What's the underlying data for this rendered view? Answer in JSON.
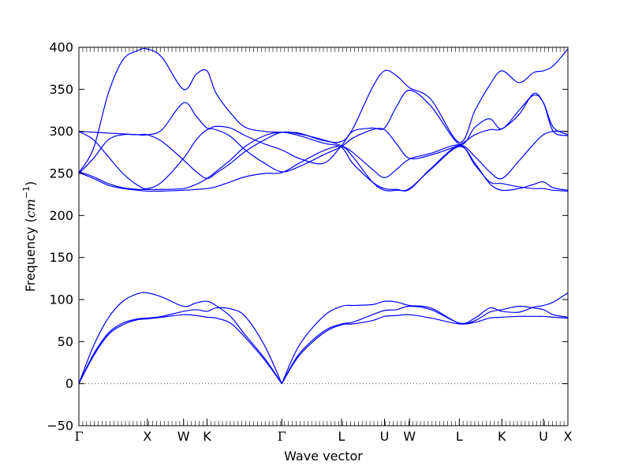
{
  "chart_data": {
    "type": "line",
    "title": "",
    "xlabel": "Wave vector",
    "ylabel_text": "Frequency (",
    "ylabel_unit": "cm",
    "ylabel_exp": "−1",
    "ylabel_close": ")",
    "ylim": [
      -50,
      400
    ],
    "yticks": [
      -50,
      0,
      50,
      100,
      150,
      200,
      250,
      300,
      350,
      400
    ],
    "ytick_labels": [
      "−50",
      "0",
      "50",
      "100",
      "150",
      "200",
      "250",
      "300",
      "350",
      "400"
    ],
    "xlim": [
      0,
      100
    ],
    "zero_line": true,
    "line_color": "#0000ff",
    "zero_line_color": "#555555",
    "kpoints": [
      {
        "label": "Γ",
        "x": 0
      },
      {
        "label": "X",
        "x": 14.0
      },
      {
        "label": "W",
        "x": 21.4
      },
      {
        "label": "K",
        "x": 26.2
      },
      {
        "label": "Γ",
        "x": 41.5
      },
      {
        "label": "L",
        "x": 53.7
      },
      {
        "label": "U",
        "x": 62.5
      },
      {
        "label": "W",
        "x": 67.6
      },
      {
        "label": "L",
        "x": 77.8
      },
      {
        "label": "K",
        "x": 86.5
      },
      {
        "label": "U",
        "x": 95.0
      },
      {
        "label": "X",
        "x": 100
      }
    ],
    "series": [
      {
        "x": [
          0,
          3,
          6,
          9,
          12,
          14,
          17,
          21.4,
          24,
          26.2,
          28,
          31,
          34,
          38,
          41.5,
          45,
          50,
          53.7,
          56,
          60,
          62.5,
          65,
          67.6,
          72,
          77.8,
          81,
          84,
          86.5,
          90,
          93,
          95,
          97,
          100
        ],
        "values": [
          0,
          45,
          78,
          98,
          107,
          108,
          103,
          92,
          96,
          98,
          93,
          80,
          58,
          30,
          0,
          45,
          80,
          92,
          93,
          94,
          98,
          97,
          93,
          90,
          72,
          78,
          90,
          86,
          85,
          91,
          93,
          97,
          108
        ]
      },
      {
        "x": [
          0,
          3,
          6,
          9,
          12,
          14,
          17,
          21.4,
          24,
          26.2,
          28,
          31,
          34,
          38,
          41.5,
          45,
          50,
          53.7,
          56,
          60,
          62.5,
          65,
          67.6,
          72,
          77.8,
          81,
          84,
          86.5,
          90,
          93,
          95,
          97,
          100
        ],
        "values": [
          0,
          35,
          60,
          72,
          77,
          78,
          80,
          86,
          88,
          86,
          90,
          89,
          80,
          45,
          0,
          35,
          62,
          71,
          73,
          82,
          87,
          88,
          92,
          88,
          72,
          75,
          85,
          88,
          92,
          90,
          88,
          82,
          79
        ]
      },
      {
        "x": [
          0,
          3,
          6,
          9,
          12,
          14,
          17,
          21.4,
          24,
          26.2,
          28,
          31,
          34,
          38,
          41.5,
          45,
          50,
          53.7,
          56,
          60,
          62.5,
          65,
          67.6,
          72,
          77.8,
          81,
          84,
          86.5,
          90,
          93,
          95,
          97,
          100
        ],
        "values": [
          0,
          33,
          58,
          70,
          76,
          77,
          79,
          82,
          81,
          79,
          78,
          72,
          55,
          28,
          0,
          33,
          60,
          70,
          71,
          75,
          80,
          81,
          82,
          78,
          71,
          73,
          78,
          79,
          80,
          80,
          80,
          79,
          78
        ]
      },
      {
        "x": [
          0,
          3,
          6,
          9,
          12,
          14,
          17,
          21.4,
          24,
          26.2,
          28,
          31,
          34,
          38,
          41.5,
          45,
          50,
          53.7,
          56,
          60,
          62.5,
          65,
          67.6,
          72,
          77.8,
          81,
          84,
          86.5,
          90,
          93,
          95,
          97,
          100
        ],
        "values": [
          251,
          244,
          236,
          232,
          230,
          229,
          229,
          230,
          231,
          232,
          234,
          240,
          246,
          250,
          251,
          262,
          277,
          282,
          270,
          240,
          230,
          230,
          232,
          255,
          282,
          262,
          238,
          230,
          232,
          237,
          240,
          233,
          230
        ]
      },
      {
        "x": [
          0,
          3,
          6,
          9,
          12,
          14,
          17,
          21.4,
          24,
          26.2,
          28,
          31,
          34,
          38,
          41.5,
          45,
          50,
          53.7,
          56,
          60,
          62.5,
          65,
          67.6,
          72,
          77.8,
          81,
          84,
          86.5,
          90,
          93,
          95,
          97,
          100
        ],
        "values": [
          252,
          246,
          238,
          233,
          231,
          231,
          231,
          232,
          237,
          244,
          252,
          266,
          282,
          295,
          299,
          295,
          286,
          281,
          262,
          240,
          232,
          231,
          231,
          256,
          283,
          260,
          240,
          238,
          234,
          232,
          232,
          230,
          229
        ]
      },
      {
        "x": [
          0,
          3,
          6,
          9,
          12,
          14,
          17,
          21.4,
          24,
          26.2,
          28,
          31,
          34,
          38,
          41.5,
          45,
          50,
          53.7,
          56,
          60,
          62.5,
          65,
          67.6,
          72,
          77.8,
          81,
          84,
          86.5,
          90,
          93,
          95,
          97,
          100
        ],
        "values": [
          250,
          268,
          290,
          296,
          296,
          296,
          288,
          266,
          252,
          244,
          250,
          262,
          276,
          290,
          299,
          297,
          290,
          283,
          275,
          255,
          245,
          255,
          267,
          274,
          284,
          270,
          252,
          244,
          265,
          285,
          296,
          300,
          300
        ]
      },
      {
        "x": [
          0,
          3,
          6,
          9,
          12,
          14,
          17,
          21.4,
          24,
          26.2,
          28,
          31,
          34,
          38,
          41.5,
          45,
          50,
          53.7,
          56,
          60,
          62.5,
          65,
          67.6,
          72,
          77.8,
          81,
          84,
          86.5,
          90,
          93,
          95,
          97,
          100
        ],
        "values": [
          300,
          290,
          270,
          250,
          236,
          232,
          240,
          268,
          290,
          302,
          302,
          294,
          278,
          262,
          252,
          258,
          272,
          282,
          292,
          302,
          302,
          285,
          268,
          272,
          284,
          296,
          302,
          303,
          320,
          345,
          334,
          305,
          296
        ]
      },
      {
        "x": [
          0,
          3,
          6,
          9,
          12,
          14,
          17,
          21.4,
          24,
          26.2,
          28,
          31,
          34,
          38,
          41.5,
          45,
          50,
          53.7,
          56,
          60,
          62.5,
          65,
          67.6,
          72,
          77.8,
          81,
          84,
          86.5,
          90,
          93,
          95,
          97,
          100
        ],
        "values": [
          300,
          299,
          298,
          297,
          296,
          296,
          302,
          334,
          318,
          304,
          306,
          304,
          295,
          285,
          278,
          268,
          262,
          283,
          300,
          304,
          304,
          330,
          349,
          330,
          285,
          305,
          315,
          303,
          325,
          343,
          334,
          300,
          295
        ]
      },
      {
        "x": [
          0,
          3,
          6,
          9,
          12,
          14,
          17,
          21.4,
          24,
          26.2,
          28,
          31,
          34,
          38,
          41.5,
          45,
          50,
          53.7,
          56,
          60,
          62.5,
          65,
          67.6,
          72,
          77.8,
          81,
          84,
          86.5,
          90,
          93,
          95,
          97,
          100
        ],
        "values": [
          251,
          280,
          345,
          385,
          396,
          398,
          388,
          350,
          368,
          372,
          346,
          322,
          305,
          300,
          299,
          298,
          289,
          288,
          303,
          352,
          372,
          366,
          352,
          338,
          287,
          325,
          355,
          372,
          358,
          370,
          372,
          378,
          398
        ]
      }
    ]
  }
}
